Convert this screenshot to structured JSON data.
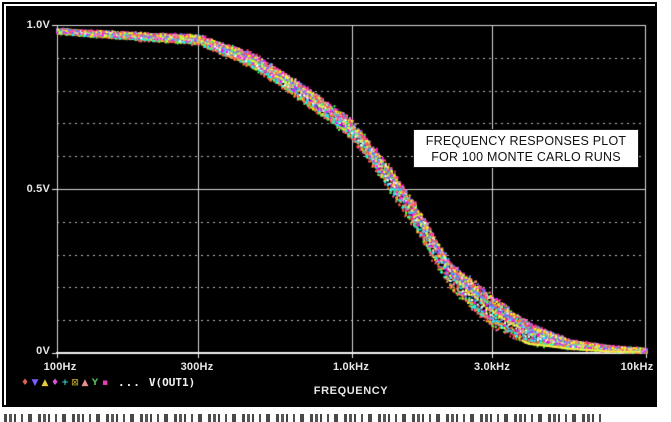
{
  "annotation": {
    "line1": "FREQUENCY RESPONSES PLOT",
    "line2": "FOR 100 MONTE CARLO RUNS"
  },
  "legend": {
    "symbols": [
      {
        "glyph": "♦",
        "color": "#e06050"
      },
      {
        "glyph": "▼",
        "color": "#7a5cff"
      },
      {
        "glyph": "▲",
        "color": "#e8cc3a"
      },
      {
        "glyph": "♦",
        "color": "#d857d8"
      },
      {
        "glyph": "+",
        "color": "#35d8c8"
      },
      {
        "glyph": "⊠",
        "color": "#b09a28"
      },
      {
        "glyph": "▲",
        "color": "#e89090"
      },
      {
        "glyph": "Y",
        "color": "#58b858"
      },
      {
        "glyph": "▪",
        "color": "#e040b0"
      }
    ],
    "ellipsis": "...",
    "trace_name": "V(OUT1)"
  },
  "chart_data": {
    "type": "scatter",
    "title": "FREQUENCY RESPONSES PLOT FOR 100 MONTE CARLO RUNS",
    "xlabel": "FREQUENCY",
    "ylabel": "",
    "series_name": "V(OUT1)",
    "runs": 100,
    "x_scale": "log",
    "x_range_hz": [
      100,
      10000
    ],
    "y_range_v": [
      0,
      1.0
    ],
    "x_tick_labels": [
      "100Hz",
      "300Hz",
      "1.0kHz",
      "3.0kHz",
      "10kHz"
    ],
    "x_tick_hz": [
      100,
      300,
      1000,
      3000,
      10000
    ],
    "y_tick_labels": [
      "1.0V",
      "0.5V",
      "0V"
    ],
    "y_tick_v": [
      1.0,
      0.5,
      0.0
    ],
    "grid": {
      "h_major_v": [
        0,
        0.5,
        1.0
      ],
      "h_minor_step_v": 0.1,
      "v_major_hz": [
        100,
        300,
        1000,
        3000,
        10000
      ],
      "style": "major solid, minors dotted, white on black"
    },
    "mean_response": {
      "freq_hz": [
        100,
        150,
        200,
        300,
        452,
        667,
        1000,
        1350,
        1710,
        2150,
        2950,
        4000,
        5500,
        7500,
        10000
      ],
      "v_out": [
        0.98,
        0.97,
        0.963,
        0.955,
        0.894,
        0.796,
        0.68,
        0.527,
        0.389,
        0.236,
        0.129,
        0.058,
        0.025,
        0.012,
        0.006
      ]
    },
    "spread_v": [
      0.006,
      0.008,
      0.01,
      0.012,
      0.02,
      0.024,
      0.026,
      0.034,
      0.037,
      0.037,
      0.046,
      0.03,
      0.012,
      0.007,
      0.005
    ],
    "palette": [
      "#ffff00",
      "#ff00ff",
      "#00ffff",
      "#ff5050",
      "#50ff50",
      "#7070ff",
      "#ffffff",
      "#ff9030",
      "#ff70c0",
      "#30c0ff",
      "#d0ff50",
      "#ff3080"
    ],
    "colors": {
      "background": "#000000",
      "grid": "#d9d9d9",
      "grid_minor": "#b9b9b9",
      "text": "#e6e6e6",
      "tail_highlight": "#f0f040"
    }
  }
}
